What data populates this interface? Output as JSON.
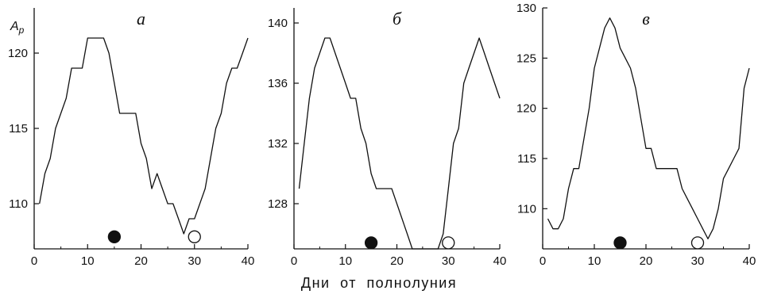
{
  "xcaption": "Дни от полнолуния",
  "chart_data": [
    {
      "type": "line",
      "panel_label": "а",
      "ylabel": "Ap",
      "ylabel_main": "A",
      "ylabel_sub": "p",
      "xlim": [
        0,
        40
      ],
      "ylim": [
        107,
        123
      ],
      "xticks": [
        0,
        10,
        20,
        30,
        40
      ],
      "yticks": [
        110,
        115,
        120
      ],
      "x": [
        1,
        2,
        3,
        4,
        5,
        6,
        7,
        8,
        9,
        10,
        11,
        12,
        13,
        14,
        15,
        16,
        17,
        18,
        19,
        20,
        21,
        22,
        23,
        24,
        25,
        26,
        27,
        28,
        29,
        30,
        31,
        32,
        33,
        34,
        35,
        36,
        37,
        38,
        39,
        40
      ],
      "y": [
        110,
        112,
        113,
        115,
        116,
        117,
        119,
        119,
        119,
        121,
        121,
        121,
        121,
        120,
        118,
        116,
        116,
        116,
        116,
        114,
        113,
        111,
        112,
        111,
        110,
        110,
        109,
        108,
        109,
        109,
        110,
        111,
        113,
        115,
        116,
        118,
        119,
        119,
        120,
        121
      ],
      "markers": [
        {
          "type": "filled-circle",
          "x": 15,
          "y": 107.8
        },
        {
          "type": "open-circle",
          "x": 30,
          "y": 107.8
        }
      ]
    },
    {
      "type": "line",
      "panel_label": "б",
      "xlim": [
        0,
        40
      ],
      "ylim": [
        125,
        141
      ],
      "xticks": [
        0,
        10,
        20,
        30,
        40
      ],
      "yticks": [
        128,
        132,
        136,
        140
      ],
      "x": [
        1,
        2,
        3,
        4,
        5,
        6,
        7,
        8,
        9,
        10,
        11,
        12,
        13,
        14,
        15,
        16,
        17,
        18,
        19,
        20,
        21,
        22,
        23,
        24,
        25,
        26,
        27,
        28,
        29,
        30,
        31,
        32,
        33,
        34,
        35,
        36,
        37,
        38,
        39,
        40
      ],
      "y": [
        129,
        132,
        135,
        137,
        138,
        139,
        139,
        138,
        137,
        136,
        135,
        135,
        133,
        132,
        130,
        129,
        129,
        129,
        129,
        128,
        127,
        126,
        125,
        125,
        125,
        125,
        125,
        125,
        126,
        129,
        132,
        133,
        136,
        137,
        138,
        139,
        138,
        137,
        136,
        135
      ],
      "markers": [
        {
          "type": "filled-circle",
          "x": 15,
          "y": 125.4
        },
        {
          "type": "open-circle",
          "x": 30,
          "y": 125.4
        }
      ]
    },
    {
      "type": "line",
      "panel_label": "в",
      "xlim": [
        0,
        40
      ],
      "ylim": [
        106,
        130
      ],
      "xticks": [
        0,
        10,
        20,
        30,
        40
      ],
      "yticks": [
        110,
        115,
        120,
        125,
        130
      ],
      "x": [
        1,
        2,
        3,
        4,
        5,
        6,
        7,
        8,
        9,
        10,
        11,
        12,
        13,
        14,
        15,
        16,
        17,
        18,
        19,
        20,
        21,
        22,
        23,
        24,
        25,
        26,
        27,
        28,
        29,
        30,
        31,
        32,
        33,
        34,
        35,
        36,
        37,
        38,
        39,
        40
      ],
      "y": [
        109,
        108,
        108,
        109,
        112,
        114,
        114,
        117,
        120,
        124,
        126,
        128,
        129,
        128,
        126,
        125,
        124,
        122,
        119,
        116,
        116,
        114,
        114,
        114,
        114,
        114,
        112,
        111,
        110,
        109,
        108,
        107,
        108,
        110,
        113,
        114,
        115,
        116,
        122,
        124
      ],
      "markers": [
        {
          "type": "filled-circle",
          "x": 15,
          "y": 106.6
        },
        {
          "type": "open-circle",
          "x": 30,
          "y": 106.6
        }
      ]
    }
  ]
}
